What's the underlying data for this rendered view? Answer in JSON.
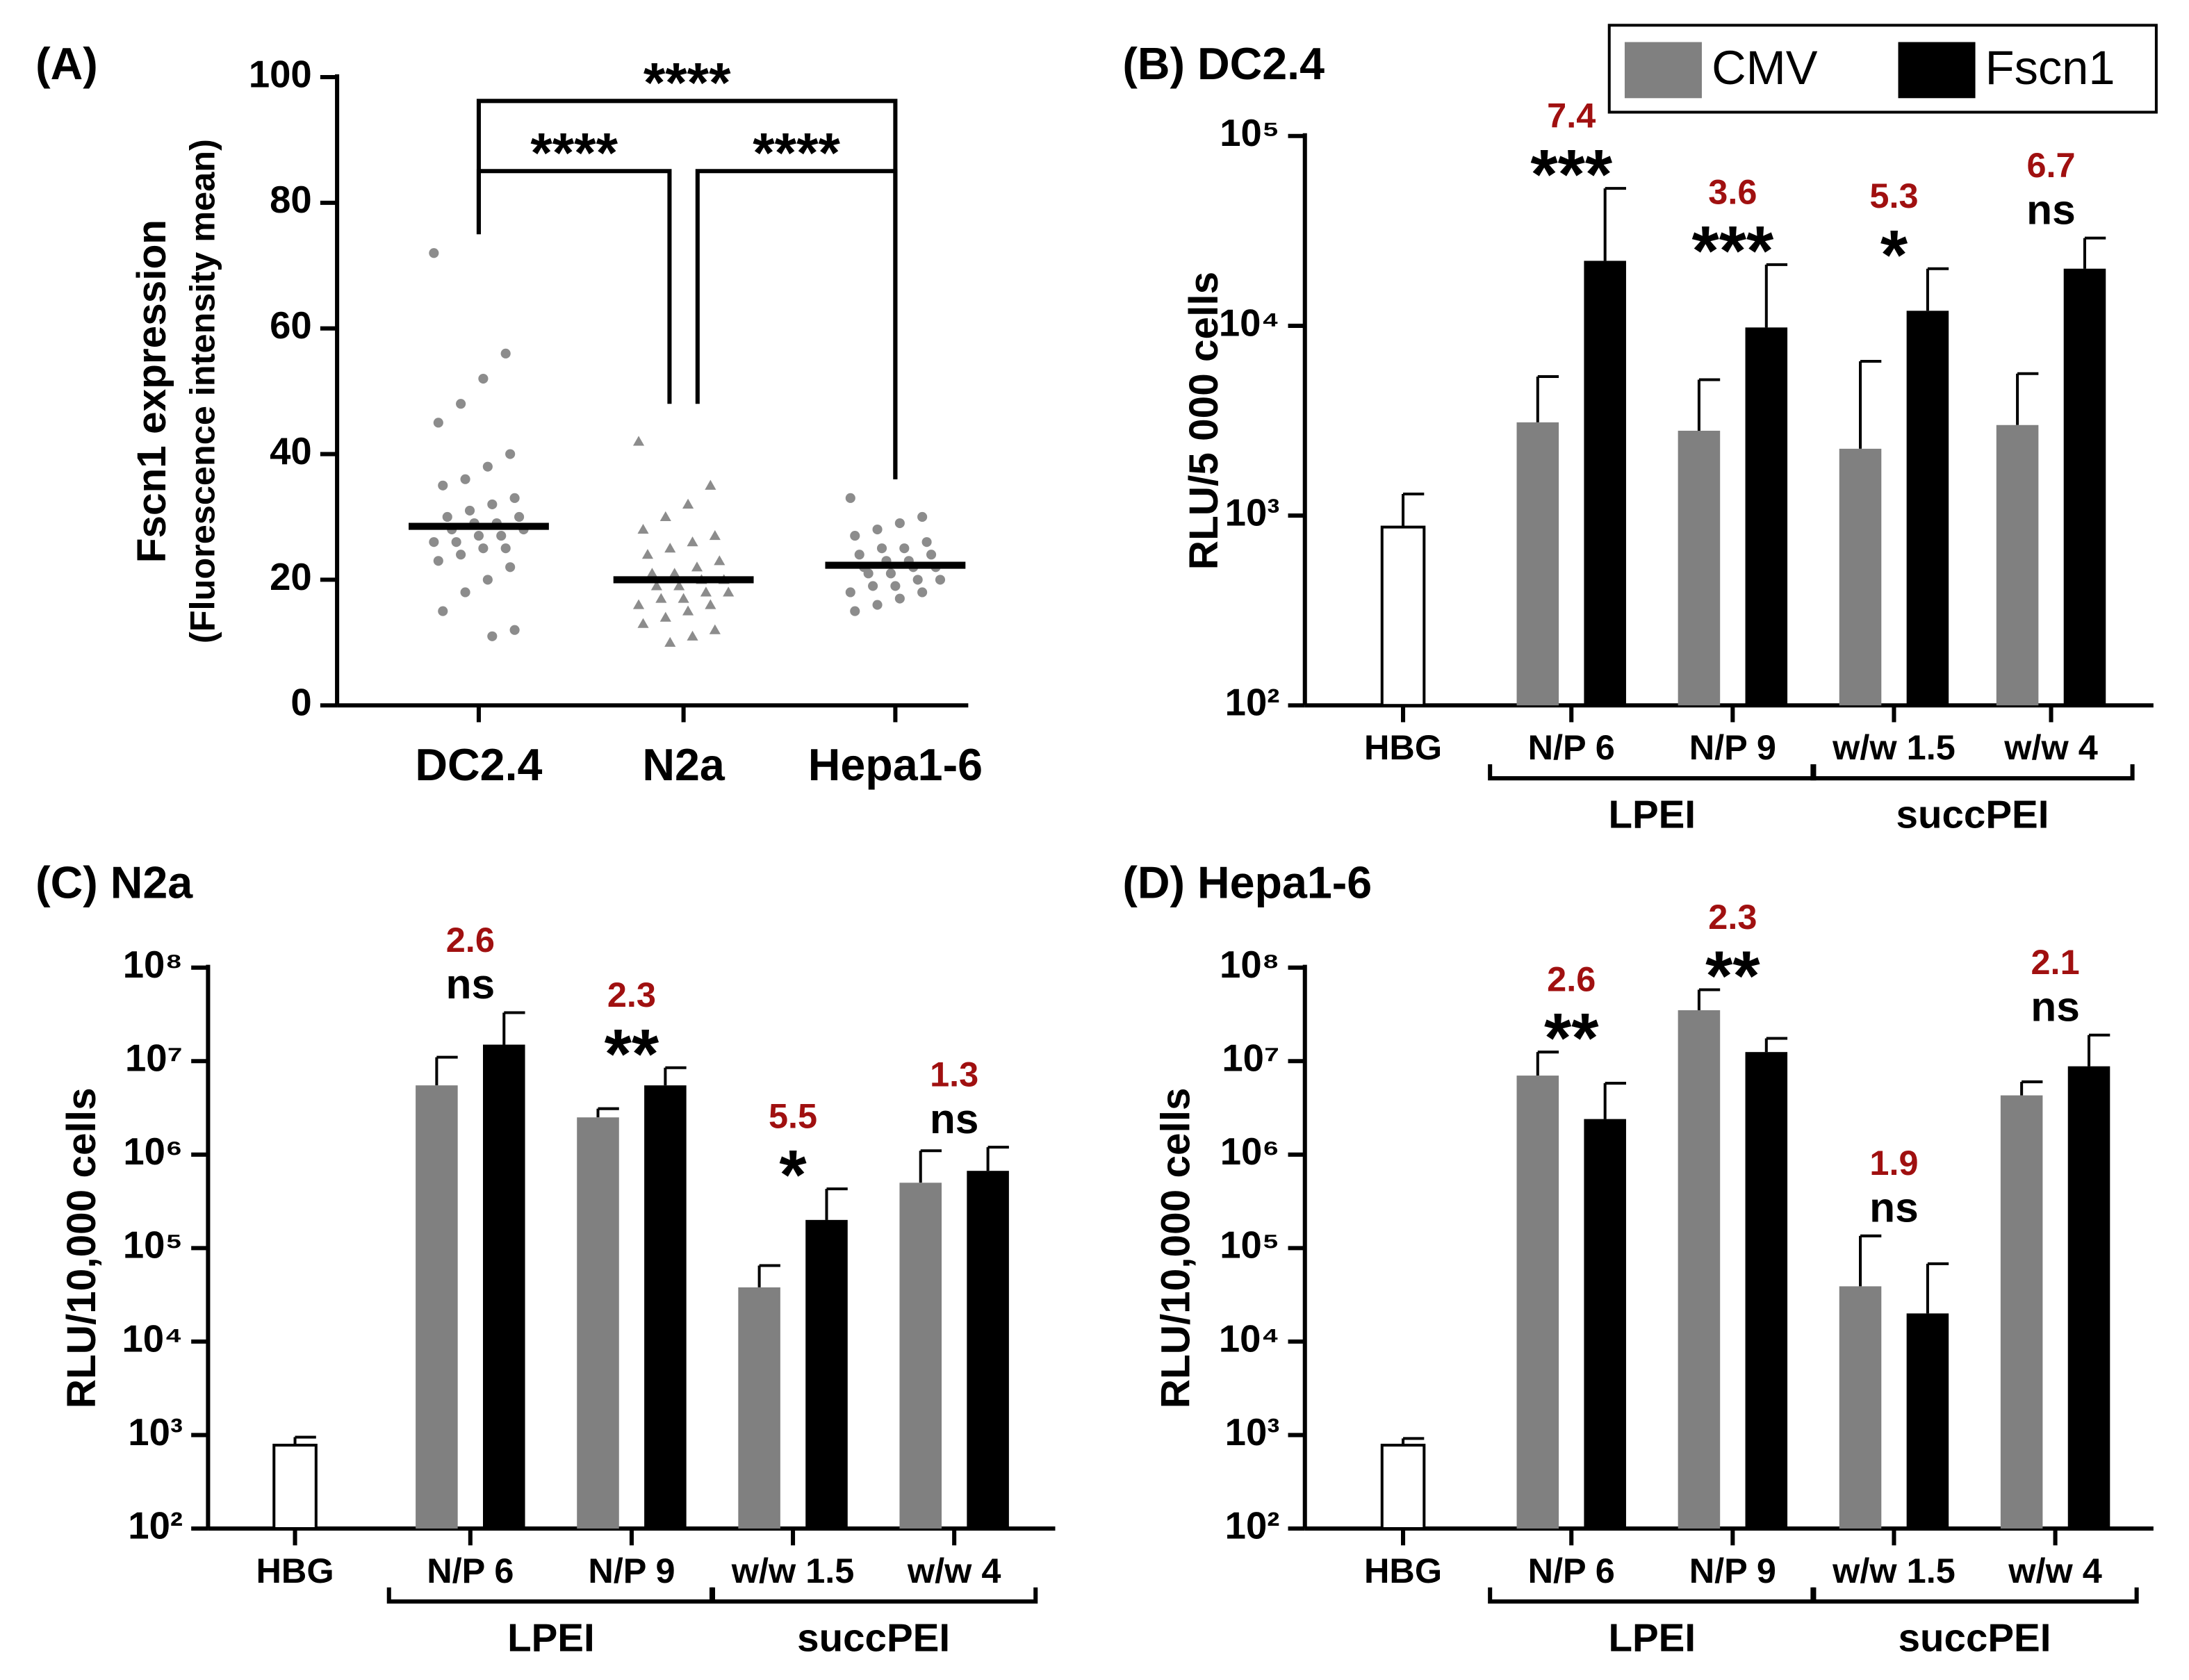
{
  "chart_data": [
    {
      "type": "dotplot",
      "title": "(A)",
      "ylabel": [
        "Fscn1 expression",
        "(Fluorescence intensity mean)"
      ],
      "categories": [
        "DC2.4",
        "N2a",
        "Hepa1-6"
      ],
      "values": [
        28.5,
        20,
        22.3
      ],
      "color": "#8c8c8c",
      "points": [
        [
          72,
          56,
          52,
          48,
          45,
          40,
          38,
          36,
          35,
          33,
          32,
          31,
          30,
          30,
          29,
          29,
          28,
          28,
          27,
          27,
          26,
          26,
          25,
          25,
          24,
          23,
          22,
          20,
          18,
          15,
          12,
          11
        ],
        [
          42,
          35,
          32,
          30,
          28,
          27,
          26,
          25,
          24,
          23,
          22,
          21,
          21,
          20,
          20,
          19,
          19,
          18,
          18,
          17,
          17,
          16,
          16,
          15,
          14,
          13,
          12,
          11,
          10
        ],
        [
          33,
          30,
          29,
          28,
          27,
          26,
          25,
          25,
          24,
          24,
          23,
          23,
          22,
          22,
          22,
          21,
          21,
          20,
          20,
          19,
          19,
          18,
          18,
          17,
          16,
          15
        ]
      ],
      "ylim": [
        0,
        100
      ],
      "yticks": [
        0,
        20,
        40,
        60,
        80,
        100
      ],
      "annotations": [
        "****",
        "****",
        "****"
      ]
    },
    {
      "type": "bar",
      "title": "(B) DC2.4",
      "ylabel": [
        "RLU/5 000 cells"
      ],
      "log_scale": true,
      "legend": "top-right",
      "categories": [
        "HBG",
        "N/P 6",
        "N/P 9",
        "w/w 1.5",
        "w/w 4"
      ],
      "group_labels": [
        null,
        "LPEI",
        "LPEI",
        "succPEI",
        "succPEI"
      ],
      "series": [
        {
          "color": "#ffffff",
          "values": [
            870,
            null,
            null,
            null,
            null
          ],
          "errors": [
            430,
            null,
            null,
            null,
            null
          ]
        },
        {
          "name": "CMV",
          "color": "#808080",
          "values": [
            null,
            3100,
            2800,
            2250,
            3000
          ],
          "errors": [
            null,
            2300,
            2400,
            4250,
            2600
          ]
        },
        {
          "name": "Fscn1",
          "color": "#000000",
          "values": [
            null,
            22000,
            9800,
            12000,
            20000
          ],
          "errors": [
            null,
            31000,
            11200,
            8000,
            9000
          ]
        }
      ],
      "fold_labels": [
        null,
        "7.4",
        "3.6",
        "5.3",
        "6.7"
      ],
      "significance": [
        null,
        "***",
        "***",
        "*",
        "ns"
      ],
      "ylim": [
        100,
        100000
      ],
      "yticks": [
        {
          "value": 100,
          "label": "10²"
        },
        {
          "value": 1000,
          "label": "10³"
        },
        {
          "value": 10000,
          "label": "10⁴"
        },
        {
          "value": 100000,
          "label": "10⁵"
        }
      ]
    },
    {
      "type": "bar",
      "title": "(C) N2a",
      "ylabel": [
        "RLU/10,000 cells"
      ],
      "log_scale": true,
      "categories": [
        "HBG",
        "N/P 6",
        "N/P 9",
        "w/w 1.5",
        "w/w 4"
      ],
      "group_labels": [
        null,
        "LPEI",
        "LPEI",
        "succPEI",
        "succPEI"
      ],
      "series": [
        {
          "color": "#ffffff",
          "values": [
            780,
            null,
            null,
            null,
            null
          ],
          "errors": [
            170,
            null,
            null,
            null,
            null
          ]
        },
        {
          "name": "CMV",
          "color": "#808080",
          "values": [
            null,
            5500000,
            2500000,
            38000,
            500000
          ],
          "errors": [
            null,
            5500000,
            600000,
            27000,
            600000
          ]
        },
        {
          "name": "Fscn1",
          "color": "#000000",
          "values": [
            null,
            15000000,
            5500000,
            200000,
            670000
          ],
          "errors": [
            null,
            18000000,
            3000000,
            230000,
            530000
          ]
        }
      ],
      "fold_labels": [
        null,
        "2.6",
        "2.3",
        "5.5",
        "1.3"
      ],
      "significance": [
        null,
        "ns",
        "**",
        "*",
        "ns"
      ],
      "ylim": [
        100,
        100000000
      ],
      "yticks": [
        {
          "value": 100,
          "label": "10²"
        },
        {
          "value": 1000,
          "label": "10³"
        },
        {
          "value": 10000,
          "label": "10⁴"
        },
        {
          "value": 100000,
          "label": "10⁵"
        },
        {
          "value": 1000000,
          "label": "10⁶"
        },
        {
          "value": 10000000,
          "label": "10⁷"
        },
        {
          "value": 100000000,
          "label": "10⁸"
        }
      ]
    },
    {
      "type": "bar",
      "title": "(D) Hepa1-6",
      "ylabel": [
        "RLU/10,000 cells"
      ],
      "log_scale": true,
      "categories": [
        "HBG",
        "N/P 6",
        "N/P 9",
        "w/w 1.5",
        "w/w 4"
      ],
      "group_labels": [
        null,
        "LPEI",
        "LPEI",
        "succPEI",
        "succPEI"
      ],
      "series": [
        {
          "color": "#ffffff",
          "values": [
            780,
            null,
            null,
            null,
            null
          ],
          "errors": [
            140,
            null,
            null,
            null,
            null
          ]
        },
        {
          "name": "CMV",
          "color": "#808080",
          "values": [
            null,
            7000000,
            35000000,
            39000,
            4300000
          ],
          "errors": [
            null,
            5500000,
            23000000,
            96000,
            1700000
          ]
        },
        {
          "name": "Fscn1",
          "color": "#000000",
          "values": [
            null,
            2400000,
            12500000,
            20000,
            8800000
          ],
          "errors": [
            null,
            3400000,
            5000000,
            48000,
            10200000
          ]
        }
      ],
      "fold_labels": [
        null,
        "2.6",
        "2.3",
        "1.9",
        "2.1"
      ],
      "significance": [
        null,
        "**",
        "**",
        "ns",
        "ns"
      ],
      "ylim": [
        100,
        100000000
      ],
      "yticks": [
        {
          "value": 100,
          "label": "10²"
        },
        {
          "value": 1000,
          "label": "10³"
        },
        {
          "value": 10000,
          "label": "10⁴"
        },
        {
          "value": 100000,
          "label": "10⁵"
        },
        {
          "value": 1000000,
          "label": "10⁶"
        },
        {
          "value": 10000000,
          "label": "10⁷"
        },
        {
          "value": 100000000,
          "label": "10⁸"
        }
      ]
    }
  ]
}
